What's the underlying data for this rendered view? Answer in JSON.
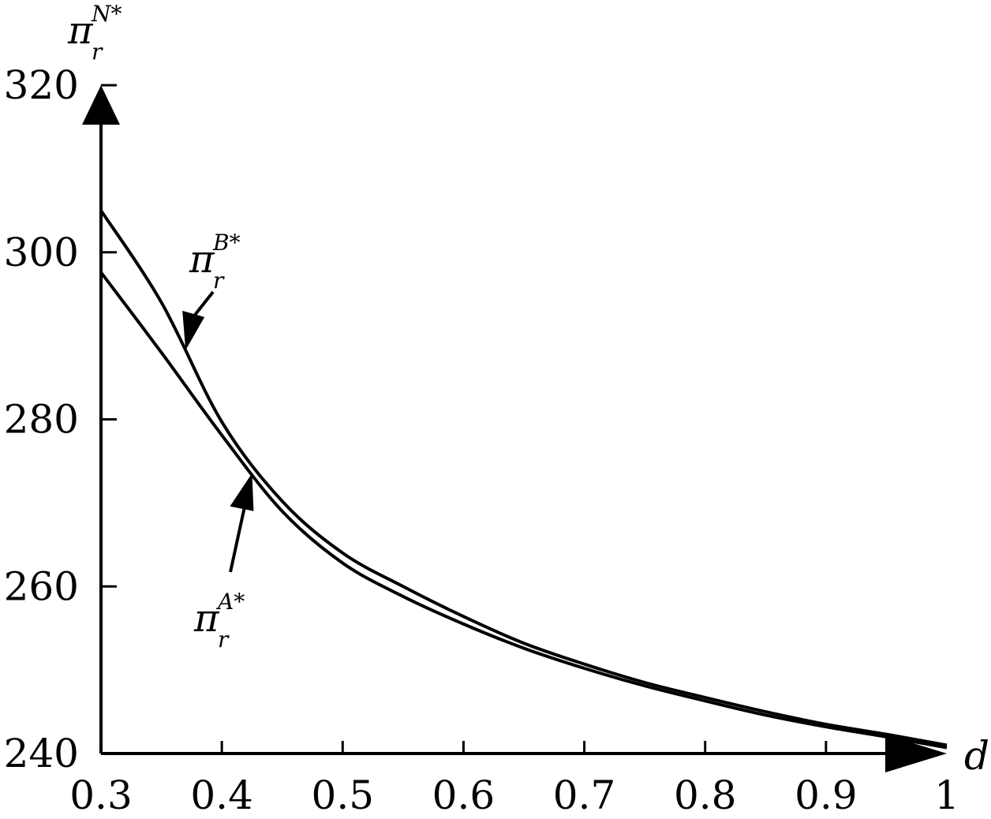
{
  "chart_data": {
    "type": "line",
    "ylabel": {
      "symbol": "π",
      "sub": "r",
      "sup": "N*"
    },
    "xlabel": "d",
    "xlim": [
      0.3,
      1.0
    ],
    "ylim": [
      240,
      320
    ],
    "x_ticks": [
      "0.3",
      "0.4",
      "0.5",
      "0.6",
      "0.7",
      "0.8",
      "0.9",
      "1"
    ],
    "x_tick_values": [
      0.3,
      0.4,
      0.5,
      0.6,
      0.7,
      0.8,
      0.9,
      1.0
    ],
    "y_ticks": [
      "240",
      "260",
      "280",
      "300",
      "320"
    ],
    "y_tick_values": [
      240,
      260,
      280,
      300,
      320
    ],
    "grid": false,
    "series": [
      {
        "name": {
          "symbol": "π",
          "sub": "r",
          "sup": "B*"
        },
        "x": [
          0.3,
          0.35,
          0.4,
          0.45,
          0.5,
          0.55,
          0.6,
          0.65,
          0.7,
          0.75,
          0.8,
          0.85,
          0.9,
          0.95,
          1.0
        ],
        "y": [
          305.0,
          294.0,
          279.7,
          270.2,
          264.0,
          260.0,
          256.4,
          253.2,
          250.7,
          248.5,
          246.7,
          245.0,
          243.5,
          242.3,
          241.0
        ],
        "annotation_at": 0.37
      },
      {
        "name": {
          "symbol": "π",
          "sub": "r",
          "sup": "A*"
        },
        "x": [
          0.3,
          0.35,
          0.4,
          0.45,
          0.5,
          0.55,
          0.6,
          0.65,
          0.7,
          0.75,
          0.8,
          0.85,
          0.9,
          0.95,
          1.0
        ],
        "y": [
          297.6,
          288.0,
          278.1,
          269.0,
          262.8,
          258.8,
          255.5,
          252.6,
          250.2,
          248.1,
          246.3,
          244.6,
          243.2,
          242.0,
          240.7
        ],
        "annotation_at": 0.425
      }
    ]
  }
}
